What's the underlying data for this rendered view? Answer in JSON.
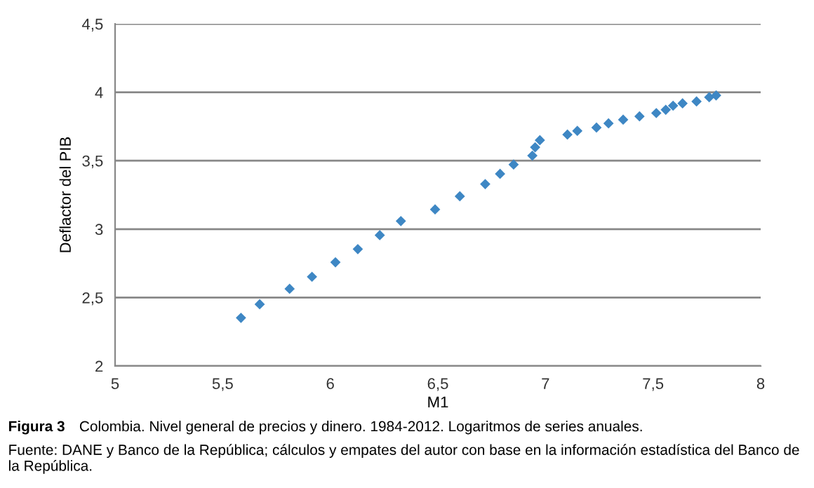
{
  "chart_data": {
    "type": "scatter",
    "xlabel": "M1",
    "ylabel": "Deflactor del PIB",
    "annotations": [
      "Figura 3",
      "Colombia. Nivel general de precios y dinero. 1984-2012. Logaritmos de series anuales.",
      "Fuente: DANE y Banco de la República; cálculos y empates del autor con base en la información estadística del Banco de la República."
    ],
    "x": [
      5.585,
      5.672,
      5.811,
      5.915,
      6.024,
      6.128,
      6.23,
      6.328,
      6.487,
      6.602,
      6.72,
      6.789,
      6.852,
      6.939,
      6.952,
      6.974,
      7.102,
      7.148,
      7.237,
      7.293,
      7.361,
      7.437,
      7.515,
      7.559,
      7.593,
      7.637,
      7.702,
      7.761,
      7.793
    ],
    "series": [
      {
        "color": "#3e87c4",
        "values": [
          2.352,
          2.451,
          2.564,
          2.652,
          2.758,
          2.854,
          2.956,
          3.059,
          3.144,
          3.24,
          3.329,
          3.404,
          3.472,
          3.537,
          3.598,
          3.65,
          3.691,
          3.718,
          3.742,
          3.773,
          3.8,
          3.824,
          3.848,
          3.872,
          3.902,
          3.919,
          3.933,
          3.964,
          3.977
        ]
      }
    ],
    "xlim": [
      5,
      8
    ],
    "ylim": [
      2,
      4.5
    ],
    "xticks": [
      5,
      {
        "value": 5.5,
        "label": "5,5"
      },
      6,
      {
        "value": 6.5,
        "label": "6,5"
      },
      7,
      {
        "value": 7.5,
        "label": "7,5"
      },
      8
    ],
    "yticks": [
      2,
      {
        "value": 2.5,
        "label": "2,5"
      },
      3,
      {
        "value": 3.5,
        "label": "3,5"
      },
      4,
      {
        "value": 4.5,
        "label": "4,5"
      }
    ],
    "grid": "y",
    "marker": "diamond",
    "legend": false
  }
}
